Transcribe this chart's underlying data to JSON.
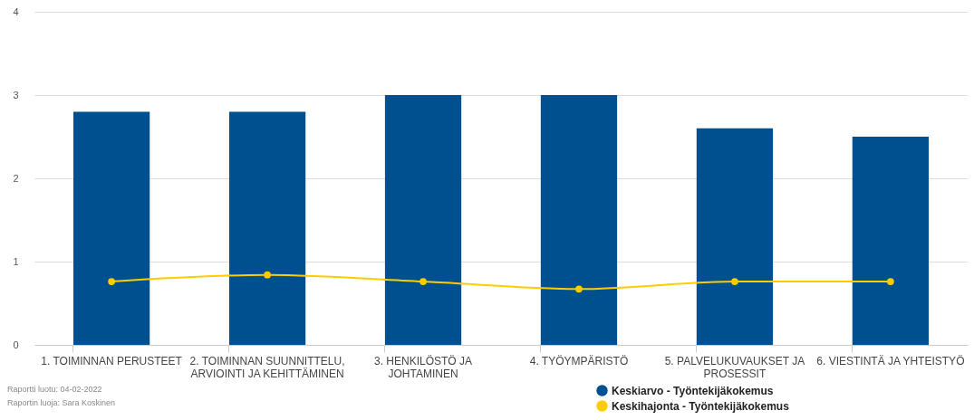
{
  "chart_data": {
    "type": "bar",
    "categories": [
      "1. TOIMINNAN PERUSTEET",
      "2. TOIMINNAN SUUNNITTELU, ARVIOINTI JA KEHITTÄMINEN",
      "3. HENKILÖSTÖ JA JOHTAMINEN",
      "4. TYÖYMPÄRISTÖ",
      "5. PALVELUKUVAUKSET JA PROSESSIT",
      "6. VIESTINTÄ JA YHTEISTYÖ"
    ],
    "series": [
      {
        "name": "Keskiarvo - Työntekijäkokemus",
        "color": "#00508f",
        "values": [
          2.8,
          2.8,
          3.0,
          3.0,
          2.6,
          2.5
        ]
      },
      {
        "name": "Keskihajonta - Työntekijäkokemus",
        "type": "line",
        "color": "#ffcc00",
        "values": [
          0.76,
          0.84,
          0.76,
          0.67,
          0.76,
          0.76
        ]
      }
    ],
    "ylim": [
      0,
      4
    ],
    "yticks": [
      0,
      1,
      2,
      3,
      4
    ],
    "grid": "y",
    "legend": "bottom right",
    "marker": "circle",
    "annotations": [
      "Raportti luotu: 04-02-2022",
      "Raportin luoja: Sara Koskinen"
    ]
  }
}
